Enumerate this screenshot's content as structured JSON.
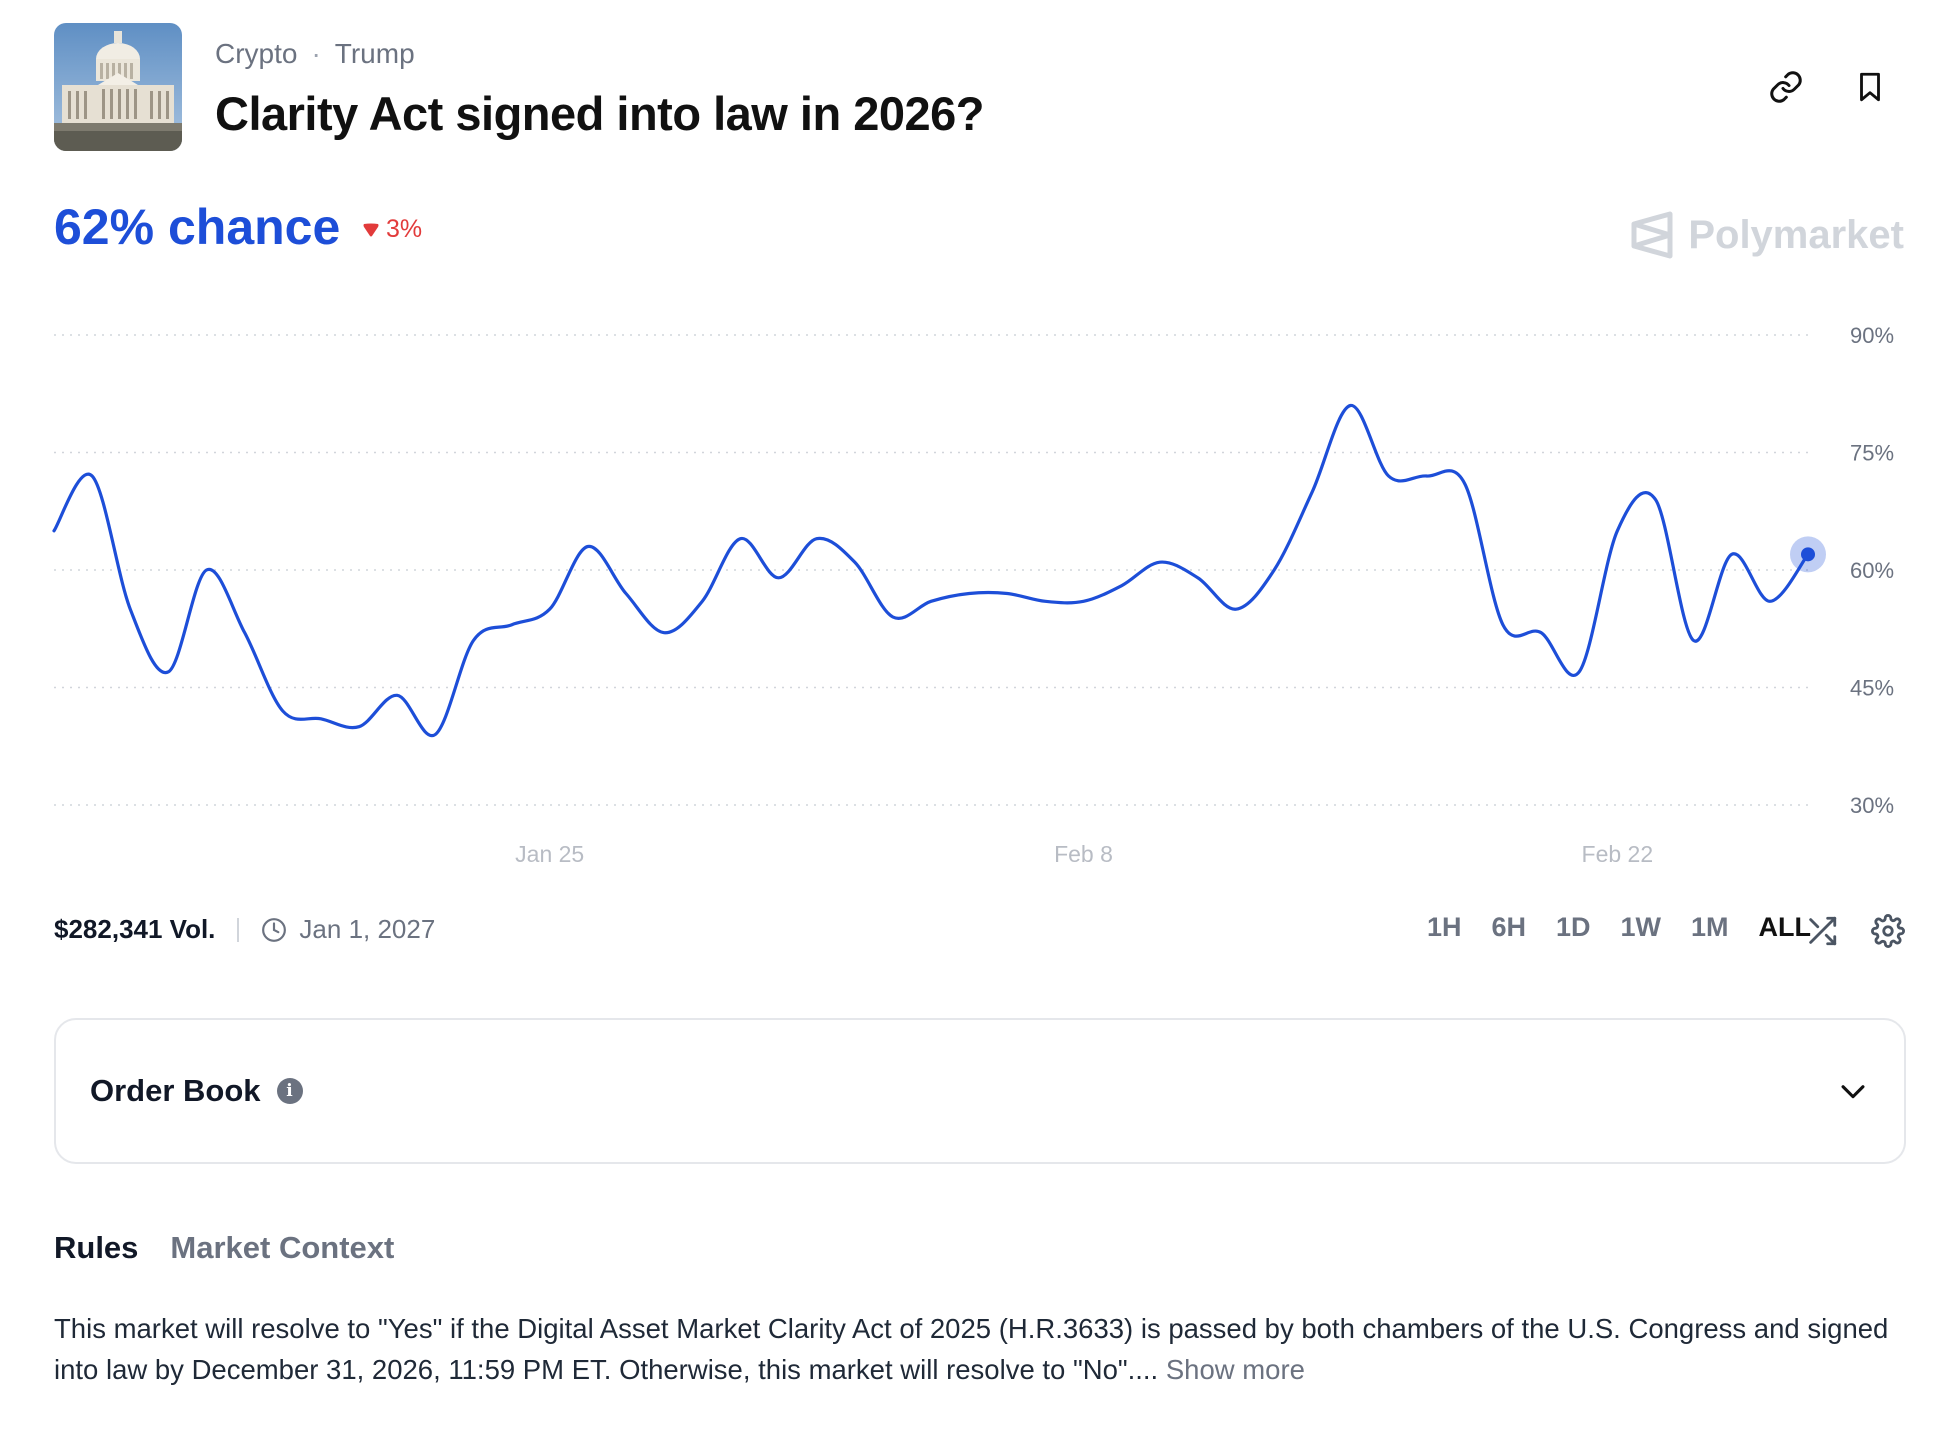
{
  "header": {
    "category": "Crypto",
    "subcategory": "Trump",
    "title": "Clarity Act signed into law in 2026?",
    "thumbnail_icon": "capitol-building-image"
  },
  "probability": {
    "chance_text": "62% chance",
    "change_text": "3%",
    "change_direction": "down",
    "accent_color": "#1d4ed8",
    "negative_color": "#e23b3b"
  },
  "brand": {
    "name": "Polymarket"
  },
  "chart_data": {
    "type": "line",
    "title": "",
    "xlabel": "",
    "ylabel": "",
    "x_ticks": [
      "Jan 25",
      "Feb 8",
      "Feb 22"
    ],
    "y_ticks": [
      "90%",
      "75%",
      "60%",
      "45%",
      "30%"
    ],
    "ylim": [
      30,
      90
    ],
    "grid": true,
    "series": [
      {
        "color": "#1d4ed8",
        "x": [
          "Jan 12",
          "Jan 13",
          "Jan 14",
          "Jan 15",
          "Jan 16",
          "Jan 17",
          "Jan 18",
          "Jan 19",
          "Jan 20",
          "Jan 21",
          "Jan 22",
          "Jan 23",
          "Jan 24",
          "Jan 25",
          "Jan 26",
          "Jan 27",
          "Jan 28",
          "Jan 29",
          "Jan 30",
          "Jan 31",
          "Feb 1",
          "Feb 2",
          "Feb 3",
          "Feb 4",
          "Feb 5",
          "Feb 6",
          "Feb 7",
          "Feb 8",
          "Feb 9",
          "Feb 10",
          "Feb 11",
          "Feb 12",
          "Feb 13",
          "Feb 14",
          "Feb 15",
          "Feb 16",
          "Feb 17",
          "Feb 18",
          "Feb 19",
          "Feb 20",
          "Feb 21",
          "Feb 22",
          "Feb 23",
          "Feb 24",
          "Feb 25",
          "Feb 26",
          "Feb 27"
        ],
        "y": [
          65,
          72,
          55,
          47,
          60,
          52,
          42,
          41,
          40,
          44,
          39,
          51,
          53,
          55,
          63,
          57,
          52,
          56,
          64,
          59,
          64,
          61,
          54,
          56,
          57,
          57,
          56,
          56,
          58,
          61,
          59,
          55,
          60,
          70,
          81,
          72,
          72,
          71,
          53,
          52,
          47,
          65,
          69,
          51,
          62,
          56,
          62
        ]
      }
    ]
  },
  "stats": {
    "volume": "$282,341 Vol.",
    "end_date": "Jan 1, 2027"
  },
  "ranges": [
    "1H",
    "6H",
    "1D",
    "1W",
    "1M",
    "ALL"
  ],
  "active_range": "ALL",
  "order_book": {
    "label": "Order Book"
  },
  "tabs": [
    "Rules",
    "Market Context"
  ],
  "rules": {
    "text": "This market will resolve to \"Yes\" if the Digital Asset Market Clarity Act of 2025 (H.R.3633) is passed by both chambers of the U.S. Congress and signed into law by December 31, 2026, 11:59 PM ET. Otherwise, this market will resolve to \"No\"....",
    "show_more": "Show more"
  }
}
